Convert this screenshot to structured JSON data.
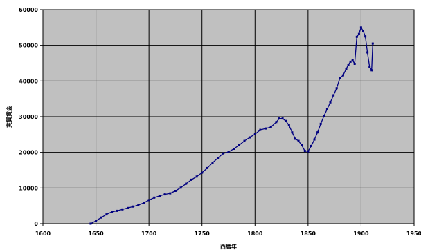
{
  "chart_data": {
    "type": "line",
    "title": "",
    "xlabel": "西暦年",
    "ylabel": "実質賃金",
    "xlim": [
      1600,
      1950
    ],
    "ylim": [
      0,
      60000
    ],
    "x_ticks": [
      1600,
      1650,
      1700,
      1750,
      1800,
      1850,
      1900,
      1950
    ],
    "y_ticks": [
      0,
      10000,
      20000,
      30000,
      40000,
      50000,
      60000
    ],
    "grid": "horizontal and vertical",
    "plot_background": "#c0c0c0",
    "series_color": "#000080",
    "series": [
      {
        "x": [
          1645,
          1650,
          1655,
          1660,
          1665,
          1670,
          1675,
          1680,
          1685,
          1690,
          1695,
          1700,
          1705,
          1710,
          1715,
          1720,
          1725,
          1730,
          1735,
          1740,
          1745,
          1750,
          1755,
          1760,
          1765,
          1770,
          1775,
          1780,
          1785,
          1790,
          1795,
          1800,
          1805,
          1810,
          1815,
          1820,
          1823,
          1826,
          1829,
          1832,
          1835,
          1838,
          1841,
          1844,
          1847,
          1850,
          1853,
          1856,
          1859,
          1862,
          1865,
          1868,
          1871,
          1874,
          1877,
          1880,
          1883,
          1886,
          1888,
          1890,
          1892,
          1894,
          1896,
          1898,
          1900,
          1902,
          1904,
          1906,
          1908,
          1910,
          1911
        ],
        "values": [
          0,
          800,
          1700,
          2600,
          3300,
          3600,
          4000,
          4400,
          4800,
          5200,
          5800,
          6600,
          7300,
          7800,
          8200,
          8500,
          9200,
          10100,
          11200,
          12300,
          13200,
          14300,
          15600,
          17100,
          18400,
          19700,
          20100,
          21000,
          22000,
          23200,
          24200,
          25100,
          26300,
          26700,
          27100,
          28500,
          29500,
          29500,
          28800,
          27600,
          25600,
          23800,
          23200,
          22000,
          20400,
          20300,
          21800,
          23600,
          25600,
          28000,
          30200,
          32100,
          34000,
          36000,
          38000,
          40800,
          41600,
          43400,
          44600,
          45400,
          45800,
          44800,
          52400,
          53200,
          55000,
          54000,
          52500,
          48000,
          44000,
          43000,
          50500
        ]
      }
    ]
  }
}
